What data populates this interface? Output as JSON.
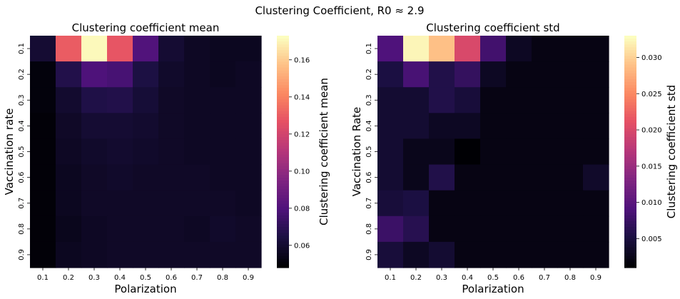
{
  "suptitle": "Clustering Coefficient, R0 ≈ 2.9",
  "chart_data": [
    {
      "type": "heatmap",
      "title": "Clustering coefficient mean",
      "xlabel": "Polarization",
      "ylabel": "Vaccination rate",
      "colorbar_label": "Clustering coefficient mean",
      "colormap": "magma",
      "x_categories": [
        "0.1",
        "0.2",
        "0.3",
        "0.4",
        "0.5",
        "0.6",
        "0.7",
        "0.8",
        "0.9"
      ],
      "y_categories": [
        "0.1",
        "0.2",
        "0.3",
        "0.4",
        "0.5",
        "0.6",
        "0.7",
        "0.8",
        "0.9"
      ],
      "vmin": 0.048,
      "vmax": 0.173,
      "colorbar_ticks": [
        "0.06",
        "0.08",
        "0.10",
        "0.12",
        "0.14",
        "0.16"
      ],
      "values": [
        [
          0.06,
          0.13,
          0.172,
          0.128,
          0.08,
          0.06,
          0.056,
          0.055,
          0.055
        ],
        [
          0.05,
          0.066,
          0.079,
          0.077,
          0.064,
          0.058,
          0.056,
          0.055,
          0.056
        ],
        [
          0.05,
          0.059,
          0.065,
          0.066,
          0.061,
          0.057,
          0.056,
          0.056,
          0.056
        ],
        [
          0.049,
          0.057,
          0.06,
          0.06,
          0.059,
          0.057,
          0.056,
          0.056,
          0.056
        ],
        [
          0.049,
          0.056,
          0.058,
          0.059,
          0.058,
          0.057,
          0.056,
          0.056,
          0.056
        ],
        [
          0.049,
          0.055,
          0.057,
          0.058,
          0.057,
          0.057,
          0.057,
          0.056,
          0.056
        ],
        [
          0.049,
          0.055,
          0.057,
          0.057,
          0.057,
          0.057,
          0.057,
          0.057,
          0.056
        ],
        [
          0.049,
          0.054,
          0.056,
          0.057,
          0.057,
          0.057,
          0.056,
          0.058,
          0.057
        ],
        [
          0.049,
          0.055,
          0.056,
          0.057,
          0.057,
          0.057,
          0.057,
          0.057,
          0.057
        ]
      ]
    },
    {
      "type": "heatmap",
      "title": "Clustering coefficient std",
      "xlabel": "Polarization",
      "ylabel": "Vaccination Rate",
      "colorbar_label": "Clustering coefficient std",
      "colormap": "magma",
      "x_categories": [
        "0.1",
        "0.2",
        "0.3",
        "0.4",
        "0.5",
        "0.6",
        "0.7",
        "0.8",
        "0.9"
      ],
      "y_categories": [
        "0.1",
        "0.2",
        "0.3",
        "0.4",
        "0.5",
        "0.6",
        "0.7",
        "0.8",
        "0.9"
      ],
      "vmin": 0.001,
      "vmax": 0.033,
      "colorbar_ticks": [
        "0.005",
        "0.010",
        "0.015",
        "0.020",
        "0.025",
        "0.030"
      ],
      "values": [
        [
          0.009,
          0.0325,
          0.029,
          0.02,
          0.008,
          0.003,
          0.002,
          0.002,
          0.002
        ],
        [
          0.005,
          0.0085,
          0.0055,
          0.007,
          0.003,
          0.002,
          0.002,
          0.002,
          0.002
        ],
        [
          0.004,
          0.004,
          0.0055,
          0.0045,
          0.002,
          0.002,
          0.002,
          0.002,
          0.002
        ],
        [
          0.004,
          0.004,
          0.003,
          0.003,
          0.002,
          0.002,
          0.002,
          0.002,
          0.002
        ],
        [
          0.004,
          0.0025,
          0.0025,
          0.0008,
          0.002,
          0.002,
          0.002,
          0.002,
          0.002
        ],
        [
          0.004,
          0.0025,
          0.0055,
          0.002,
          0.002,
          0.002,
          0.002,
          0.002,
          0.0035
        ],
        [
          0.0045,
          0.005,
          0.002,
          0.002,
          0.002,
          0.002,
          0.002,
          0.002,
          0.002
        ],
        [
          0.0075,
          0.006,
          0.002,
          0.002,
          0.002,
          0.002,
          0.002,
          0.002,
          0.002
        ],
        [
          0.0045,
          0.003,
          0.004,
          0.002,
          0.002,
          0.002,
          0.002,
          0.002,
          0.002
        ]
      ]
    }
  ]
}
